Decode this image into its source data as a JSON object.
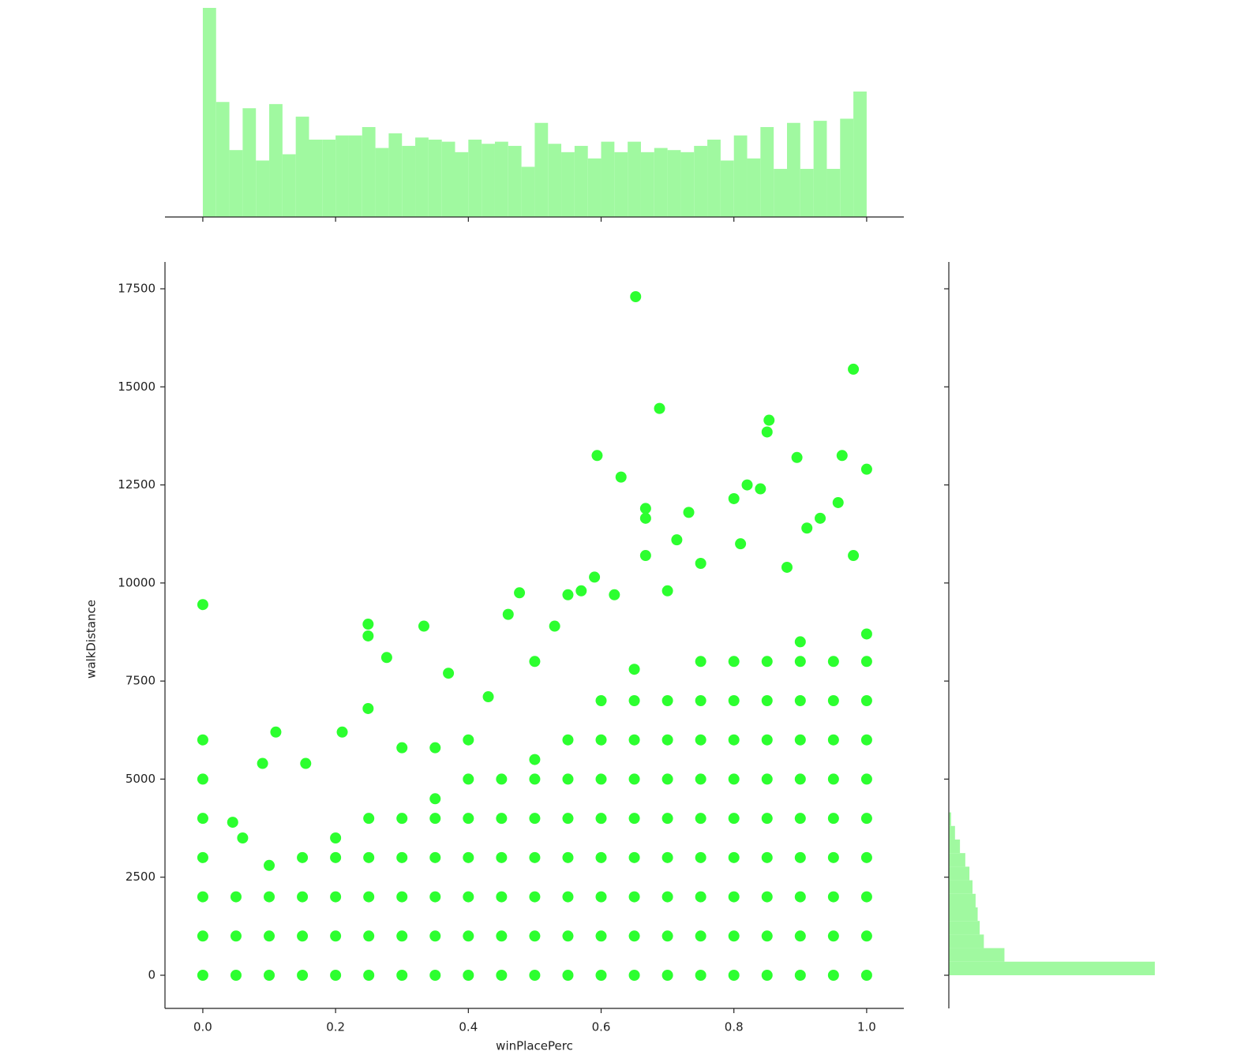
{
  "chart_data": [
    {
      "type": "histogram",
      "orientation": "vertical",
      "color": "#a0f9a0",
      "bins": [
        0,
        0.02,
        0.04,
        0.06,
        0.08,
        0.1,
        0.12,
        0.14,
        0.16,
        0.18,
        0.2,
        0.22,
        0.24,
        0.26,
        0.28,
        0.3,
        0.32,
        0.34,
        0.36,
        0.38,
        0.4,
        0.42,
        0.44,
        0.46,
        0.48,
        0.5,
        0.52,
        0.54,
        0.56,
        0.58,
        0.6,
        0.62,
        0.64,
        0.66,
        0.68,
        0.7,
        0.72,
        0.74,
        0.76,
        0.78,
        0.8,
        0.82,
        0.84,
        0.86,
        0.88,
        0.9,
        0.92,
        0.94,
        0.96,
        0.98,
        1
      ],
      "values": [
        100,
        55,
        32,
        52,
        27,
        54,
        30,
        48,
        37,
        37,
        39,
        39,
        43,
        33,
        40,
        34,
        38,
        37,
        36,
        31,
        37,
        35,
        36,
        34,
        24,
        45,
        35,
        31,
        34,
        28,
        36,
        31,
        36,
        31,
        33,
        32,
        31,
        34,
        37,
        27,
        39,
        28,
        43,
        23,
        45,
        23,
        46,
        23,
        47,
        60
      ],
      "xlim": [
        -0.057,
        1.056
      ],
      "ylim": [
        0,
        100
      ],
      "xticks": [
        0,
        0.2,
        0.4,
        0.6,
        0.8,
        1
      ]
    },
    {
      "type": "scatter",
      "color": "#2cff2f",
      "xlabel": "winPlacePerc",
      "ylabel": "walkDistance",
      "x": [
        0,
        0,
        0,
        0,
        0,
        0,
        0,
        0.05,
        0.05,
        0.05,
        0.1,
        0.1,
        0.1,
        0.1,
        0.15,
        0.15,
        0.15,
        0.15,
        0.2,
        0.2,
        0.2,
        0.2,
        0.2,
        0.25,
        0.25,
        0.25,
        0.25,
        0.25,
        0.3,
        0.3,
        0.3,
        0.3,
        0.3,
        0.35,
        0.35,
        0.35,
        0.35,
        0.35,
        0.35,
        0.4,
        0.4,
        0.4,
        0.4,
        0.4,
        0.4,
        0.45,
        0.45,
        0.45,
        0.45,
        0.45,
        0.45,
        0.5,
        0.5,
        0.5,
        0.5,
        0.5,
        0.5,
        0.5,
        0.55,
        0.55,
        0.55,
        0.55,
        0.55,
        0.55,
        0.55,
        0.6,
        0.6,
        0.6,
        0.6,
        0.6,
        0.6,
        0.6,
        0.6,
        0.65,
        0.65,
        0.65,
        0.65,
        0.65,
        0.65,
        0.65,
        0.65,
        0.65,
        0.7,
        0.7,
        0.7,
        0.7,
        0.7,
        0.7,
        0.7,
        0.7,
        0.75,
        0.75,
        0.75,
        0.75,
        0.75,
        0.75,
        0.75,
        0.75,
        0.75,
        0.8,
        0.8,
        0.8,
        0.8,
        0.8,
        0.8,
        0.8,
        0.8,
        0.8,
        0.85,
        0.85,
        0.85,
        0.85,
        0.85,
        0.85,
        0.85,
        0.85,
        0.85,
        0.9,
        0.9,
        0.9,
        0.9,
        0.9,
        0.9,
        0.9,
        0.9,
        0.9,
        0.9,
        0.95,
        0.95,
        0.95,
        0.95,
        0.95,
        0.95,
        0.95,
        0.95,
        0.95,
        1,
        1,
        1,
        1,
        1,
        1,
        1,
        1,
        1,
        1,
        0.652,
        0.98,
        0.688,
        0.85,
        0.853,
        0.594,
        0.963,
        0.895,
        1,
        0.63,
        0.82,
        0.84,
        0.957,
        0.8,
        0.667,
        0.667,
        0.732,
        0.93,
        0,
        0.249,
        0.249,
        0.333,
        0.277,
        0.477,
        0.46,
        0.59,
        0.667,
        0.714,
        0.81,
        0.91,
        0.98,
        0.37,
        0.249,
        0.11,
        0.21,
        0.09,
        0.155,
        0.045,
        0.06,
        0.5,
        0.43,
        0.55,
        0.57,
        0.62,
        0.7,
        0.75,
        0.88,
        0.53,
        0.4,
        0.35,
        0.3
      ],
      "y": [
        0,
        1000,
        2000,
        3000,
        4000,
        5000,
        6000,
        0,
        1000,
        2000,
        0,
        1000,
        2000,
        2800,
        0,
        1000,
        2000,
        3000,
        0,
        1000,
        2000,
        3000,
        3500,
        0,
        1000,
        2000,
        3000,
        4000,
        0,
        1000,
        2000,
        3000,
        4000,
        0,
        1000,
        2000,
        3000,
        4000,
        4500,
        0,
        1000,
        2000,
        3000,
        4000,
        5000,
        0,
        1000,
        2000,
        3000,
        4000,
        5000,
        0,
        1000,
        2000,
        3000,
        4000,
        5000,
        5500,
        0,
        1000,
        2000,
        3000,
        4000,
        5000,
        6000,
        0,
        1000,
        2000,
        3000,
        4000,
        5000,
        6000,
        7000,
        0,
        1000,
        2000,
        3000,
        4000,
        5000,
        6000,
        7000,
        7800,
        0,
        1000,
        2000,
        3000,
        4000,
        5000,
        6000,
        7000,
        0,
        1000,
        2000,
        3000,
        4000,
        5000,
        6000,
        7000,
        8000,
        0,
        1000,
        2000,
        3000,
        4000,
        5000,
        6000,
        7000,
        8000,
        0,
        1000,
        2000,
        3000,
        4000,
        5000,
        6000,
        7000,
        8000,
        0,
        1000,
        2000,
        3000,
        4000,
        5000,
        6000,
        7000,
        8000,
        8500,
        0,
        1000,
        2000,
        3000,
        4000,
        5000,
        6000,
        7000,
        8000,
        0,
        1000,
        2000,
        3000,
        4000,
        5000,
        6000,
        7000,
        8000,
        8700,
        17300,
        15450,
        14450,
        13850,
        14150,
        13250,
        13250,
        13200,
        12900,
        12700,
        12500,
        12400,
        12050,
        12150,
        11900,
        11650,
        11800,
        11650,
        9450,
        8950,
        8650,
        8900,
        8100,
        9750,
        9200,
        10150,
        10700,
        11100,
        11000,
        11400,
        10700,
        7700,
        6800,
        6200,
        6200,
        5400,
        5400,
        3900,
        3500,
        8000,
        7100,
        9700,
        9800,
        9700,
        9800,
        10500,
        10400,
        8900,
        6000,
        5800,
        5800
      ],
      "xlim": [
        -0.057,
        1.056
      ],
      "ylim": [
        -845,
        18184
      ],
      "xticks": [
        {
          "value": 0,
          "label": "0.0"
        },
        {
          "value": 0.2,
          "label": "0.2"
        },
        {
          "value": 0.4,
          "label": "0.4"
        },
        {
          "value": 0.6,
          "label": "0.6"
        },
        {
          "value": 0.8,
          "label": "0.8"
        },
        {
          "value": 1,
          "label": "1.0"
        }
      ],
      "yticks": [
        0,
        2500,
        5000,
        7500,
        10000,
        12500,
        15000,
        17500
      ]
    },
    {
      "type": "histogram",
      "orientation": "horizontal",
      "color": "#a0f9a0",
      "bins": [
        0,
        346,
        692,
        1038,
        1384,
        1730,
        2076,
        2422,
        2768,
        3114,
        3460,
        3806,
        4152
      ],
      "values": [
        100,
        27,
        17,
        15,
        14,
        13,
        11.5,
        10,
        8,
        5.4,
        3,
        1.1
      ],
      "xlim": [
        0,
        105
      ],
      "ylim": [
        -845,
        18184
      ],
      "yticks": [
        0,
        2500,
        5000,
        7500,
        10000,
        12500,
        15000,
        17500
      ]
    }
  ]
}
